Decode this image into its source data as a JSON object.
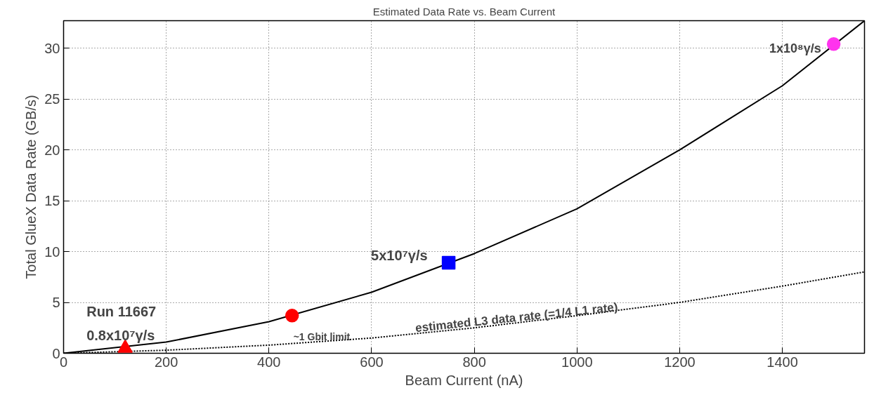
{
  "chart_data": {
    "type": "line",
    "title": "Estimated Data Rate vs. Beam Current",
    "xlabel": "Beam Current (nA)",
    "ylabel": "Total GlueX Data Rate (GB/s)",
    "xlim": [
      0,
      1560
    ],
    "ylim": [
      0,
      32.7
    ],
    "xticks": [
      0,
      200,
      400,
      600,
      800,
      1000,
      1200,
      1400
    ],
    "yticks": [
      0,
      5,
      10,
      15,
      20,
      25,
      30
    ],
    "grid": true,
    "series": [
      {
        "color": "#000000",
        "line_style": "solid",
        "x": [
          0,
          200,
          400,
          600,
          800,
          1000,
          1200,
          1400,
          1560
        ],
        "values": [
          0,
          1.1,
          3.1,
          6.0,
          9.8,
          14.2,
          20.0,
          26.3,
          32.7
        ]
      },
      {
        "color": "#000000",
        "line_style": "dotted",
        "x": [
          0,
          200,
          400,
          600,
          800,
          1000,
          1200,
          1400,
          1560
        ],
        "values": [
          0,
          0.3,
          0.8,
          1.5,
          2.5,
          3.7,
          5.0,
          6.6,
          8.0
        ]
      },
      {
        "type": "scatter",
        "color": "#ff0000",
        "marker": "triangle",
        "x": [
          120
        ],
        "values": [
          0.5
        ]
      },
      {
        "type": "scatter",
        "color": "#ff0000",
        "marker": "circle",
        "x": [
          445
        ],
        "values": [
          3.7
        ]
      },
      {
        "type": "scatter",
        "color": "#0000ff",
        "marker": "square",
        "x": [
          750
        ],
        "values": [
          8.9
        ]
      },
      {
        "type": "scatter",
        "color": "#ff33ee",
        "marker": "circle",
        "x": [
          1500
        ],
        "values": [
          30.4
        ]
      }
    ],
    "annotations": [
      {
        "text": "Run 11667",
        "x": 120,
        "y": 0.5
      },
      {
        "text": "0.8x10⁷γ/s",
        "x": 120,
        "y": 0.5
      },
      {
        "text": "~1 Gbit limit",
        "x": 445,
        "y": 3.7
      },
      {
        "text": "5x10⁷γ/s",
        "x": 750,
        "y": 8.9
      },
      {
        "text": "1x10⁸γ/s",
        "x": 1500,
        "y": 30.4
      },
      {
        "text": "estimated L3 data rate (=1/4 L1 rate)",
        "x": 1000,
        "y": 3.7
      }
    ]
  }
}
